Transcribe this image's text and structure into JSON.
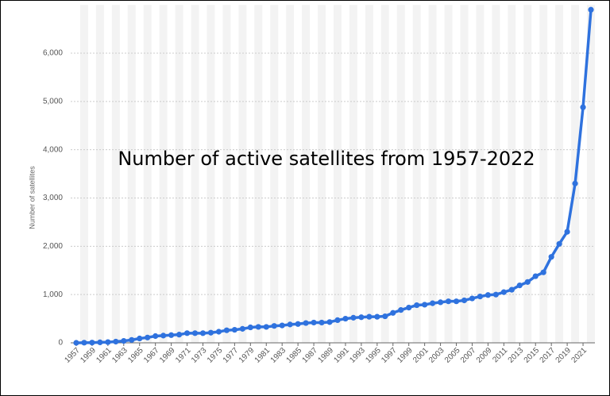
{
  "chart_data": {
    "type": "line",
    "title": "Number of active satellites from 1957-2022",
    "y_label": "Number of satellites",
    "x": [
      1957,
      1958,
      1959,
      1960,
      1961,
      1962,
      1963,
      1964,
      1965,
      1966,
      1967,
      1968,
      1969,
      1970,
      1971,
      1972,
      1973,
      1974,
      1975,
      1976,
      1977,
      1978,
      1979,
      1980,
      1981,
      1982,
      1983,
      1984,
      1985,
      1986,
      1987,
      1988,
      1989,
      1990,
      1991,
      1992,
      1993,
      1994,
      1995,
      1996,
      1997,
      1998,
      1999,
      2000,
      2001,
      2002,
      2003,
      2004,
      2005,
      2006,
      2007,
      2008,
      2009,
      2010,
      2011,
      2012,
      2013,
      2014,
      2015,
      2016,
      2017,
      2018,
      2019,
      2020,
      2021,
      2022
    ],
    "values": [
      0,
      3,
      5,
      10,
      15,
      25,
      40,
      60,
      90,
      110,
      140,
      150,
      160,
      170,
      200,
      200,
      200,
      210,
      230,
      260,
      270,
      290,
      320,
      330,
      330,
      350,
      360,
      380,
      390,
      410,
      420,
      420,
      430,
      470,
      500,
      520,
      530,
      540,
      540,
      550,
      620,
      680,
      730,
      780,
      790,
      820,
      840,
      860,
      860,
      880,
      920,
      960,
      990,
      1000,
      1050,
      1100,
      1190,
      1260,
      1380,
      1460,
      1780,
      2050,
      2300,
      3300,
      4880,
      6900
    ],
    "color": "#2f72de",
    "xlim": [
      1956.3,
      2022.5
    ],
    "xticks": [
      1957,
      1959,
      1961,
      1963,
      1965,
      1967,
      1969,
      1971,
      1973,
      1975,
      1977,
      1979,
      1981,
      1983,
      1985,
      1987,
      1989,
      1991,
      1993,
      1995,
      1997,
      1999,
      2001,
      2003,
      2005,
      2007,
      2009,
      2011,
      2013,
      2015,
      2017,
      2019,
      2021
    ],
    "ylim": [
      0,
      7000
    ],
    "yticks": [
      0,
      {
        "value": 1000,
        "label": "1,000"
      },
      {
        "value": 2000,
        "label": "2,000"
      },
      {
        "value": 3000,
        "label": "3,000"
      },
      {
        "value": 4000,
        "label": "4,000"
      },
      {
        "value": 5000,
        "label": "5,000"
      },
      {
        "value": 6000,
        "label": "6,000"
      }
    ],
    "grid": true
  }
}
